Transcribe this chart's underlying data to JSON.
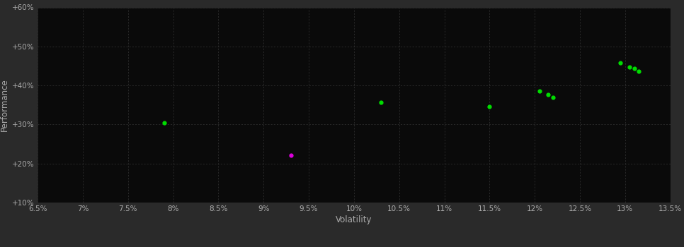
{
  "xlabel": "Volatility",
  "ylabel": "Performance",
  "bg_color": "#2a2a2a",
  "plot_bg_color": "#0a0a0a",
  "grid_color": "#404040",
  "text_color": "#aaaaaa",
  "xlim": [
    0.065,
    0.135
  ],
  "ylim": [
    0.1,
    0.6
  ],
  "xticks": [
    0.065,
    0.07,
    0.075,
    0.08,
    0.085,
    0.09,
    0.095,
    0.1,
    0.105,
    0.11,
    0.115,
    0.12,
    0.125,
    0.13,
    0.135
  ],
  "yticks": [
    0.1,
    0.2,
    0.3,
    0.4,
    0.5,
    0.6
  ],
  "green_points": [
    [
      0.079,
      0.305
    ],
    [
      0.103,
      0.356
    ],
    [
      0.115,
      0.346
    ],
    [
      0.1205,
      0.385
    ],
    [
      0.1215,
      0.376
    ],
    [
      0.122,
      0.37
    ],
    [
      0.1295,
      0.458
    ],
    [
      0.1305,
      0.448
    ],
    [
      0.131,
      0.443
    ],
    [
      0.1315,
      0.437
    ]
  ],
  "magenta_points": [
    [
      0.093,
      0.222
    ]
  ],
  "green_color": "#00dd00",
  "magenta_color": "#dd00dd",
  "point_size": 12
}
